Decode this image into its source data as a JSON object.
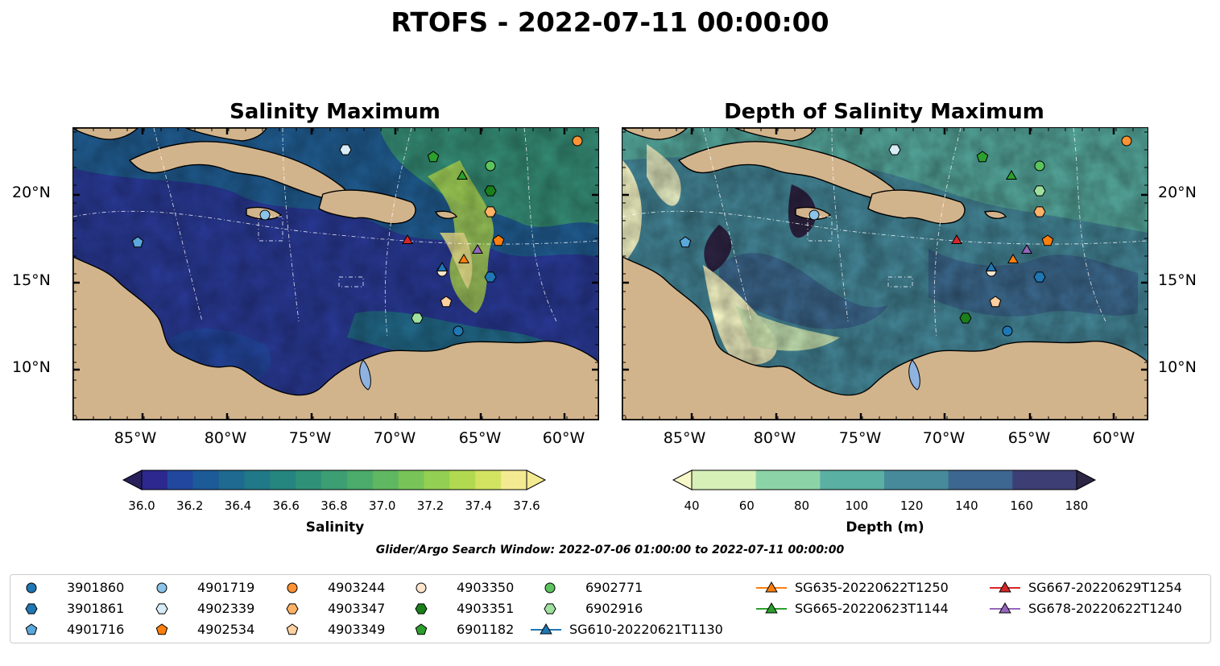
{
  "title": "RTOFS - 2022-07-11 00:00:00",
  "panels": [
    {
      "title": "Salinity Maximum",
      "colorbar_label": "Salinity",
      "colorbar_ticks": [
        "36.0",
        "36.2",
        "36.4",
        "36.6",
        "36.8",
        "37.0",
        "37.2",
        "37.4",
        "37.6"
      ]
    },
    {
      "title": "Depth of Salinity Maximum",
      "colorbar_label": "Depth (m)",
      "colorbar_ticks": [
        "40",
        "60",
        "80",
        "100",
        "120",
        "140",
        "160",
        "180"
      ]
    }
  ],
  "lon_ticks": [
    "85°W",
    "80°W",
    "75°W",
    "70°W",
    "65°W",
    "60°W"
  ],
  "lat_ticks": [
    "20°N",
    "15°N",
    "10°N"
  ],
  "search_window": "Glider/Argo Search Window: 2022-07-06 01:00:00 to 2022-07-11 00:00:00",
  "legend": [
    {
      "label": "3901860",
      "marker": "circle",
      "color": "#1f77b4"
    },
    {
      "label": "3901861",
      "marker": "hexagon",
      "color": "#1f77b4"
    },
    {
      "label": "4901716",
      "marker": "pentagon",
      "color": "#5aa8dc"
    },
    {
      "label": "4901719",
      "marker": "circle",
      "color": "#8cc3e8"
    },
    {
      "label": "4902339",
      "marker": "hexagon",
      "color": "#d8ecf8"
    },
    {
      "label": "4902534",
      "marker": "pentagon",
      "color": "#ff7f0e"
    },
    {
      "label": "4903244",
      "marker": "circle",
      "color": "#ff9233"
    },
    {
      "label": "4903347",
      "marker": "hexagon",
      "color": "#ffb266"
    },
    {
      "label": "4903349",
      "marker": "pentagon",
      "color": "#ffd0a0"
    },
    {
      "label": "4903350",
      "marker": "circle",
      "color": "#ffe6cc"
    },
    {
      "label": "4903351",
      "marker": "hexagon",
      "color": "#1a7f1a"
    },
    {
      "label": "6901182",
      "marker": "pentagon",
      "color": "#2ca02c"
    },
    {
      "label": "6902771",
      "marker": "circle",
      "color": "#5cc45c"
    },
    {
      "label": "6902916",
      "marker": "hexagon",
      "color": "#9fe09f"
    },
    {
      "label": "SG610-20220621T1130",
      "marker": "triangle-line",
      "color": "#1f77b4"
    },
    {
      "label": "SG635-20220622T1250",
      "marker": "triangle-line",
      "color": "#ff7f0e"
    },
    {
      "label": "SG665-20220623T1144",
      "marker": "triangle-line",
      "color": "#2ca02c"
    },
    {
      "label": "SG667-20220629T1254",
      "marker": "triangle-line",
      "color": "#d62728"
    },
    {
      "label": "SG678-20220622T1240",
      "marker": "triangle-line",
      "color": "#9467bd"
    }
  ],
  "colors": {
    "land": "#d2b48c",
    "lake": "#8fb2e0",
    "salinity_colormap": [
      "#28205a",
      "#2c2890",
      "#22489e",
      "#1c5a98",
      "#1e6a90",
      "#207888",
      "#25857f",
      "#2f9278",
      "#3c9e72",
      "#4aab6a",
      "#5fb861",
      "#78c458",
      "#93cf52",
      "#b2da50",
      "#d2e362",
      "#f4ea92"
    ],
    "depth_colormap": [
      "#f8f8c8",
      "#d6f0b8",
      "#8cd4a8",
      "#5ab0a2",
      "#468a9c",
      "#3d6690",
      "#3c3e74",
      "#2e2444"
    ]
  }
}
